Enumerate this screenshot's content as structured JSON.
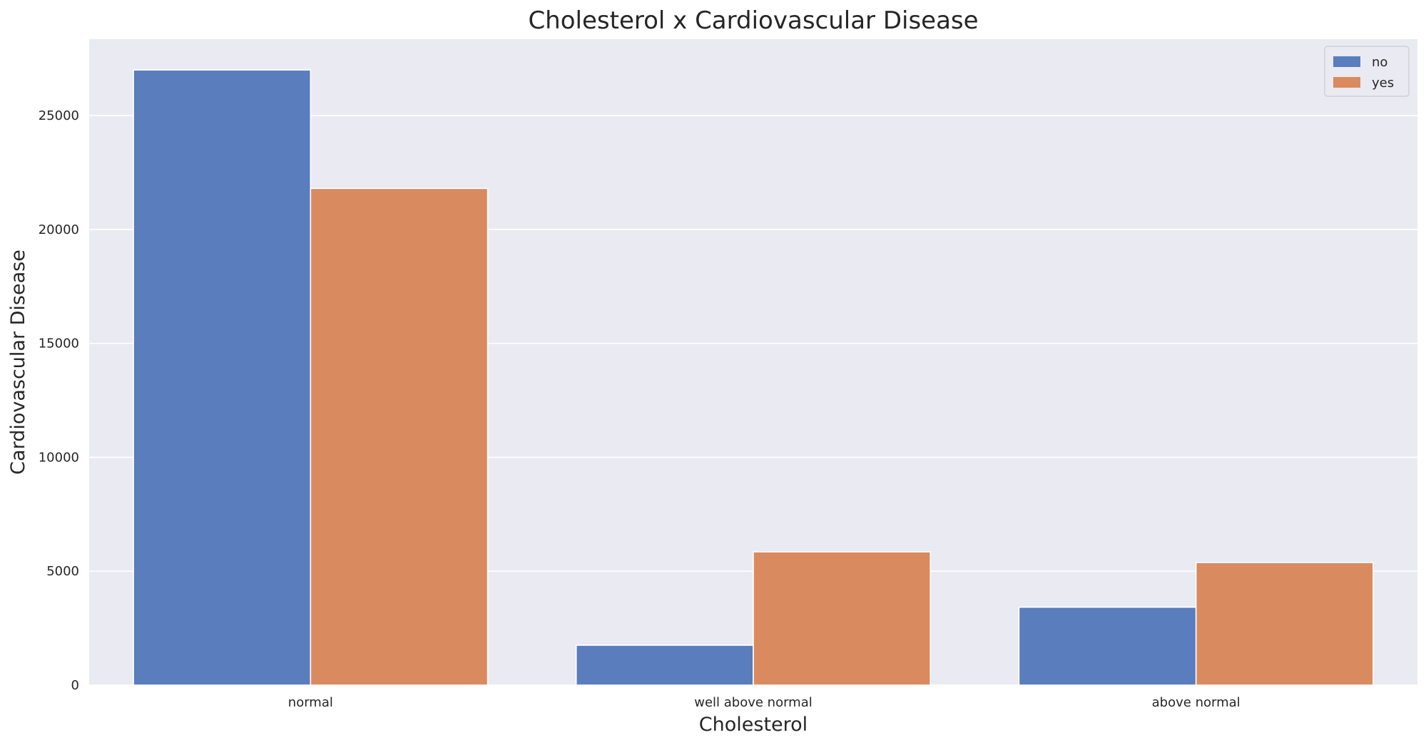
{
  "chart_data": {
    "type": "bar",
    "title": "Cholesterol x Cardiovascular Disease",
    "xlabel": "Cholesterol",
    "ylabel": "Cardiovascular Disease",
    "categories": [
      "normal",
      "well above normal",
      "above normal"
    ],
    "series": [
      {
        "name": "no",
        "color": "#5a7dbe",
        "values": [
          27000,
          1750,
          3420
        ]
      },
      {
        "name": "yes",
        "color": "#d98b5f",
        "values": [
          21800,
          5850,
          5380
        ]
      }
    ],
    "ylim": [
      0,
      28350
    ],
    "yticks": [
      0,
      5000,
      10000,
      15000,
      20000,
      25000
    ],
    "grid": true,
    "legend_position": "top-right",
    "background": "#eaeaf2"
  }
}
